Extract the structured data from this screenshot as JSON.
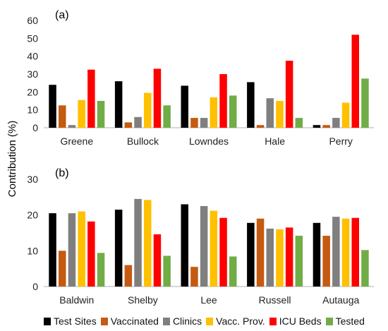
{
  "chart_data": [
    {
      "type": "bar",
      "panel_label": "(a)",
      "categories": [
        "Greene",
        "Bullock",
        "Lowndes",
        "Hale",
        "Perry"
      ],
      "ylim": [
        0,
        60
      ],
      "yticks": [
        0,
        10,
        20,
        30,
        40,
        50,
        60
      ],
      "ylabel": "Contribution (%)",
      "grid": false,
      "series": [
        {
          "name": "Test Sites",
          "color": "#000000",
          "values": [
            24,
            26,
            23.5,
            25.5,
            1.5
          ]
        },
        {
          "name": "Vaccinated",
          "color": "#c55a11",
          "values": [
            12.5,
            3,
            5.5,
            1.5,
            1.5
          ]
        },
        {
          "name": "Clinics",
          "color": "#7f7f7f",
          "values": [
            1.5,
            6,
            5.5,
            16.5,
            5.5
          ]
        },
        {
          "name": "Vacc. Prov.",
          "color": "#ffc000",
          "values": [
            15.5,
            19.5,
            17,
            15,
            14
          ]
        },
        {
          "name": "ICU Beds",
          "color": "#ff0000",
          "values": [
            32.5,
            33,
            30,
            37.5,
            52
          ]
        },
        {
          "name": "Tested",
          "color": "#70ad47",
          "values": [
            15,
            12.5,
            18,
            5.5,
            27.5
          ]
        }
      ]
    },
    {
      "type": "bar",
      "panel_label": "(b)",
      "categories": [
        "Baldwin",
        "Shelby",
        "Lee",
        "Russell",
        "Autauga"
      ],
      "ylim": [
        0,
        30
      ],
      "yticks": [
        0,
        10,
        20,
        30
      ],
      "ylabel": "Contribution (%)",
      "grid": false,
      "series": [
        {
          "name": "Test Sites",
          "color": "#000000",
          "values": [
            20.5,
            21.5,
            23,
            17.8,
            17.8
          ]
        },
        {
          "name": "Vaccinated",
          "color": "#c55a11",
          "values": [
            10,
            6,
            5.5,
            19,
            14.2
          ]
        },
        {
          "name": "Clinics",
          "color": "#7f7f7f",
          "values": [
            20.5,
            24.5,
            22.5,
            16.2,
            19.5
          ]
        },
        {
          "name": "Vacc. Prov.",
          "color": "#ffc000",
          "values": [
            21,
            24.2,
            21.2,
            16,
            19
          ]
        },
        {
          "name": "ICU Beds",
          "color": "#ff0000",
          "values": [
            18.2,
            14.6,
            19.2,
            16.5,
            19.2
          ]
        },
        {
          "name": "Tested",
          "color": "#70ad47",
          "values": [
            9.4,
            8.6,
            8.4,
            14.2,
            10.2
          ]
        }
      ]
    }
  ],
  "legend": {
    "placement": "bottom",
    "items": [
      {
        "label": "Test Sites",
        "color": "#000000"
      },
      {
        "label": "Vaccinated",
        "color": "#c55a11"
      },
      {
        "label": "Clinics",
        "color": "#7f7f7f"
      },
      {
        "label": "Vacc. Prov.",
        "color": "#ffc000"
      },
      {
        "label": "ICU Beds",
        "color": "#ff0000"
      },
      {
        "label": "Tested",
        "color": "#70ad47"
      }
    ]
  }
}
